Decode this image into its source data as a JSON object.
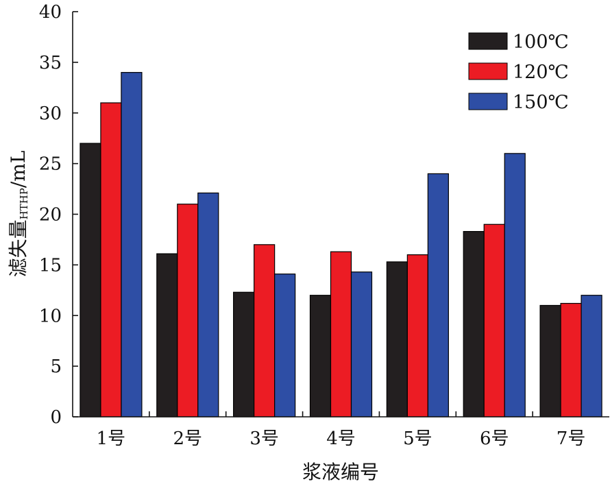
{
  "chart_data": {
    "type": "bar",
    "categories": [
      "1号",
      "2号",
      "3号",
      "4号",
      "5号",
      "6号",
      "7号"
    ],
    "series": [
      {
        "name": "100℃",
        "color": "#231f20",
        "values": [
          27,
          16.1,
          12.3,
          12,
          15.3,
          18.3,
          11
        ]
      },
      {
        "name": "120℃",
        "color": "#ec1c24",
        "values": [
          31,
          21,
          17,
          16.3,
          16,
          19,
          11.2
        ]
      },
      {
        "name": "150℃",
        "color": "#2e4ea5",
        "values": [
          34,
          22.1,
          14.1,
          14.3,
          24,
          26,
          12
        ]
      }
    ],
    "xlabel": "浆液编号",
    "ylabel": {
      "main": "滤失量",
      "subscript": "HTHP",
      "unit": "/mL"
    },
    "ylim": [
      0,
      40
    ],
    "yticks": [
      0,
      5,
      10,
      15,
      20,
      25,
      30,
      35,
      40
    ],
    "grid": false,
    "legend_position": "top-right"
  }
}
